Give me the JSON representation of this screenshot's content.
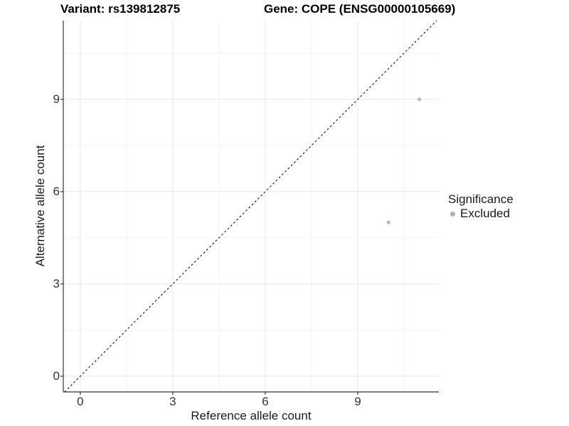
{
  "titles": {
    "left": "Variant: rs139812875",
    "right": "Gene: COPE (ENSG00000105669)"
  },
  "chart_data": {
    "type": "scatter",
    "title_left": "Variant: rs139812875",
    "title_right": "Gene: COPE (ENSG00000105669)",
    "xlabel": "Reference allele count",
    "ylabel": "Alternative allele count",
    "xlim": [
      -0.55,
      11.63
    ],
    "ylim": [
      -0.51,
      11.56
    ],
    "x_major_ticks": [
      0,
      3,
      6,
      9
    ],
    "y_major_ticks": [
      0,
      3,
      6,
      9
    ],
    "x_minor_ticks": [
      1.5,
      4.5,
      7.5,
      10.5
    ],
    "y_minor_ticks": [
      1.5,
      4.5,
      7.5,
      10.5
    ],
    "grid": {
      "major_color": "#e6e6e6",
      "minor_color": "#f1f1f1",
      "on": true
    },
    "axis_color": "#333333",
    "identity_line": {
      "type": "y=x",
      "style": "dashed",
      "color": "#000000"
    },
    "points": [
      {
        "x": 11,
        "y": 9,
        "significance": "Excluded"
      },
      {
        "x": 10,
        "y": 5,
        "significance": "Excluded"
      }
    ],
    "point_color": "#b9b9b9",
    "legend": {
      "title": "Significance",
      "position": "right",
      "items": [
        {
          "label": "Excluded",
          "color": "#b0b0b0"
        }
      ]
    }
  }
}
